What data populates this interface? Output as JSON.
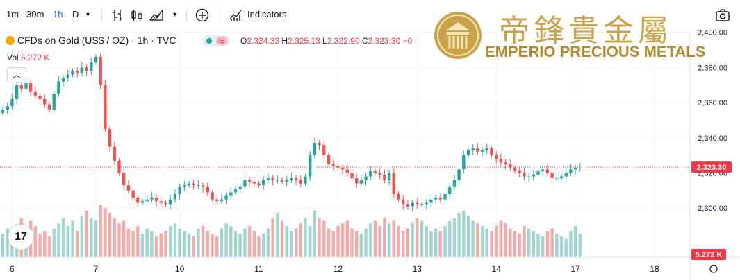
{
  "toolbar": {
    "intervals": [
      "1m",
      "30m",
      "1h",
      "D"
    ],
    "active_interval": "1h",
    "indicators_label": "Indicators"
  },
  "legend": {
    "symbol": "CFDs on Gold (US$ / OZ) · 1h · TVC",
    "o_label": "O",
    "o": "2,324.33",
    "h_label": "H",
    "h": "2,325.13",
    "l_label": "L",
    "l": "2,322.90",
    "c_label": "C",
    "c": "2,323.30",
    "change": "−0",
    "vol_label": "Vol",
    "vol_value": "5.272 K"
  },
  "watermark": {
    "chinese": "帝鋒貴金屬",
    "english": "EMPERIO PRECIOUS METALS"
  },
  "tv_logo_text": "17",
  "colors": {
    "up": "#26a69a",
    "down": "#ef5350",
    "vol_up": "#9fd6cf",
    "vol_down": "#f4aaa8",
    "price_label_bg": "#f23645",
    "gold": "#c9a24a"
  },
  "chart_data": {
    "type": "candlestick",
    "ylim": [
      2293,
      2401
    ],
    "y_ticks": [
      2300,
      2320,
      2340,
      2360,
      2380,
      2400
    ],
    "y_tick_labels": [
      "2,300.00",
      "2,320.00",
      "2,340.00",
      "2,360.00",
      "2,380.00",
      "2,400.00"
    ],
    "x_ticks": [
      {
        "label": "6",
        "index": 2
      },
      {
        "label": "7",
        "index": 20
      },
      {
        "label": "10",
        "index": 38
      },
      {
        "label": "11",
        "index": 55
      },
      {
        "label": "12",
        "index": 72
      },
      {
        "label": "13",
        "index": 89
      },
      {
        "label": "14",
        "index": 106
      },
      {
        "label": "17",
        "index": 123
      },
      {
        "label": "18",
        "index": 140
      }
    ],
    "last_price": 2323.3,
    "last_price_label": "2,323.30",
    "last_volume_label": "5.272 K",
    "closes": [
      2356,
      2358,
      2362,
      2370,
      2368,
      2371,
      2366,
      2364,
      2362,
      2359,
      2356,
      2365,
      2372,
      2374,
      2376,
      2378,
      2377,
      2380,
      2378,
      2383,
      2386,
      2370,
      2345,
      2335,
      2327,
      2320,
      2313,
      2310,
      2306,
      2303,
      2304,
      2305,
      2306,
      2304,
      2303,
      2302,
      2305,
      2308,
      2312,
      2313,
      2314,
      2313,
      2313,
      2312,
      2309,
      2305,
      2304,
      2305,
      2307,
      2309,
      2311,
      2312,
      2316,
      2315,
      2314,
      2313,
      2316,
      2317,
      2316,
      2316,
      2315,
      2316,
      2317,
      2316,
      2314,
      2318,
      2330,
      2337,
      2336,
      2330,
      2325,
      2324,
      2323,
      2322,
      2320,
      2317,
      2314,
      2316,
      2318,
      2321,
      2320,
      2319,
      2316,
      2320,
      2308,
      2305,
      2302,
      2301,
      2303,
      2302,
      2302,
      2303,
      2305,
      2306,
      2305,
      2308,
      2312,
      2316,
      2322,
      2330,
      2333,
      2334,
      2332,
      2333,
      2334,
      2330,
      2328,
      2326,
      2325,
      2323,
      2321,
      2320,
      2318,
      2318,
      2319,
      2321,
      2322,
      2320,
      2317,
      2317,
      2318,
      2320,
      2322,
      2323,
      2323
    ],
    "volumes": [
      18,
      22,
      15,
      25,
      30,
      20,
      28,
      24,
      18,
      20,
      16,
      22,
      26,
      30,
      24,
      28,
      20,
      32,
      36,
      30,
      28,
      40,
      38,
      34,
      30,
      26,
      28,
      22,
      20,
      24,
      18,
      22,
      20,
      16,
      18,
      20,
      24,
      26,
      22,
      20,
      18,
      16,
      22,
      24,
      20,
      18,
      16,
      22,
      26,
      24,
      20,
      18,
      22,
      24,
      20,
      16,
      18,
      22,
      30,
      34,
      28,
      24,
      20,
      22,
      26,
      30,
      24,
      36,
      30,
      28,
      22,
      20,
      24,
      26,
      28,
      22,
      20,
      18,
      22,
      26,
      28,
      24,
      30,
      26,
      28,
      24,
      20,
      22,
      26,
      30,
      28,
      24,
      20,
      22,
      20,
      24,
      28,
      30,
      34,
      36,
      32,
      28,
      26,
      24,
      22,
      20,
      24,
      28,
      26,
      22,
      20,
      18,
      24,
      22,
      20,
      18,
      16,
      20,
      22,
      18,
      16,
      14,
      20,
      24,
      18
    ]
  }
}
